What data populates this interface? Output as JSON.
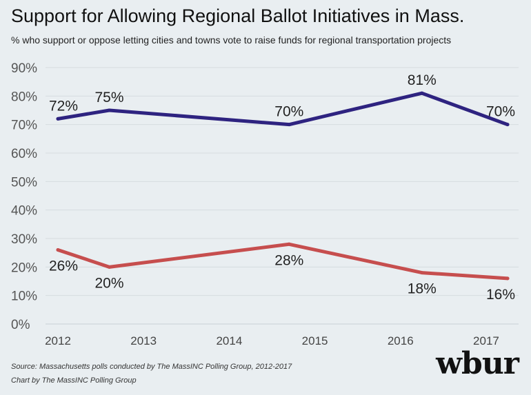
{
  "chart_data": {
    "type": "line",
    "title": "Support for Allowing Regional Ballot Initiatives in Mass.",
    "subtitle": "% who support or oppose letting cities and towns vote to raise funds for regional transportation projects",
    "x_ticks": [
      "2012",
      "2013",
      "2014",
      "2015",
      "2016",
      "2017"
    ],
    "y_ticks": [
      "0%",
      "10%",
      "20%",
      "30%",
      "40%",
      "50%",
      "60%",
      "70%",
      "80%",
      "90%"
    ],
    "xlim": [
      2012,
      2017.25
    ],
    "ylim": [
      0,
      90
    ],
    "grid": true,
    "series": [
      {
        "color": "#2e2380",
        "points": [
          {
            "x": 2012.0,
            "y": 72,
            "label": "72%"
          },
          {
            "x": 2012.6,
            "y": 75,
            "label": "75%"
          },
          {
            "x": 2014.7,
            "y": 70,
            "label": "70%"
          },
          {
            "x": 2016.25,
            "y": 81,
            "label": "81%"
          },
          {
            "x": 2017.25,
            "y": 70,
            "label": "70%"
          }
        ]
      },
      {
        "color": "#c64e4e",
        "points": [
          {
            "x": 2012.0,
            "y": 26,
            "label": "26%"
          },
          {
            "x": 2012.6,
            "y": 20,
            "label": "20%"
          },
          {
            "x": 2014.7,
            "y": 28,
            "label": "28%"
          },
          {
            "x": 2016.25,
            "y": 18,
            "label": "18%"
          },
          {
            "x": 2017.25,
            "y": 16,
            "label": "16%"
          }
        ]
      }
    ]
  },
  "footer": {
    "source": "Source: Massachusetts polls conducted by The MassINC Polling Group, 2012-2017",
    "credit": "Chart by The MassINC Polling Group"
  },
  "logo": {
    "text": "wbur"
  }
}
